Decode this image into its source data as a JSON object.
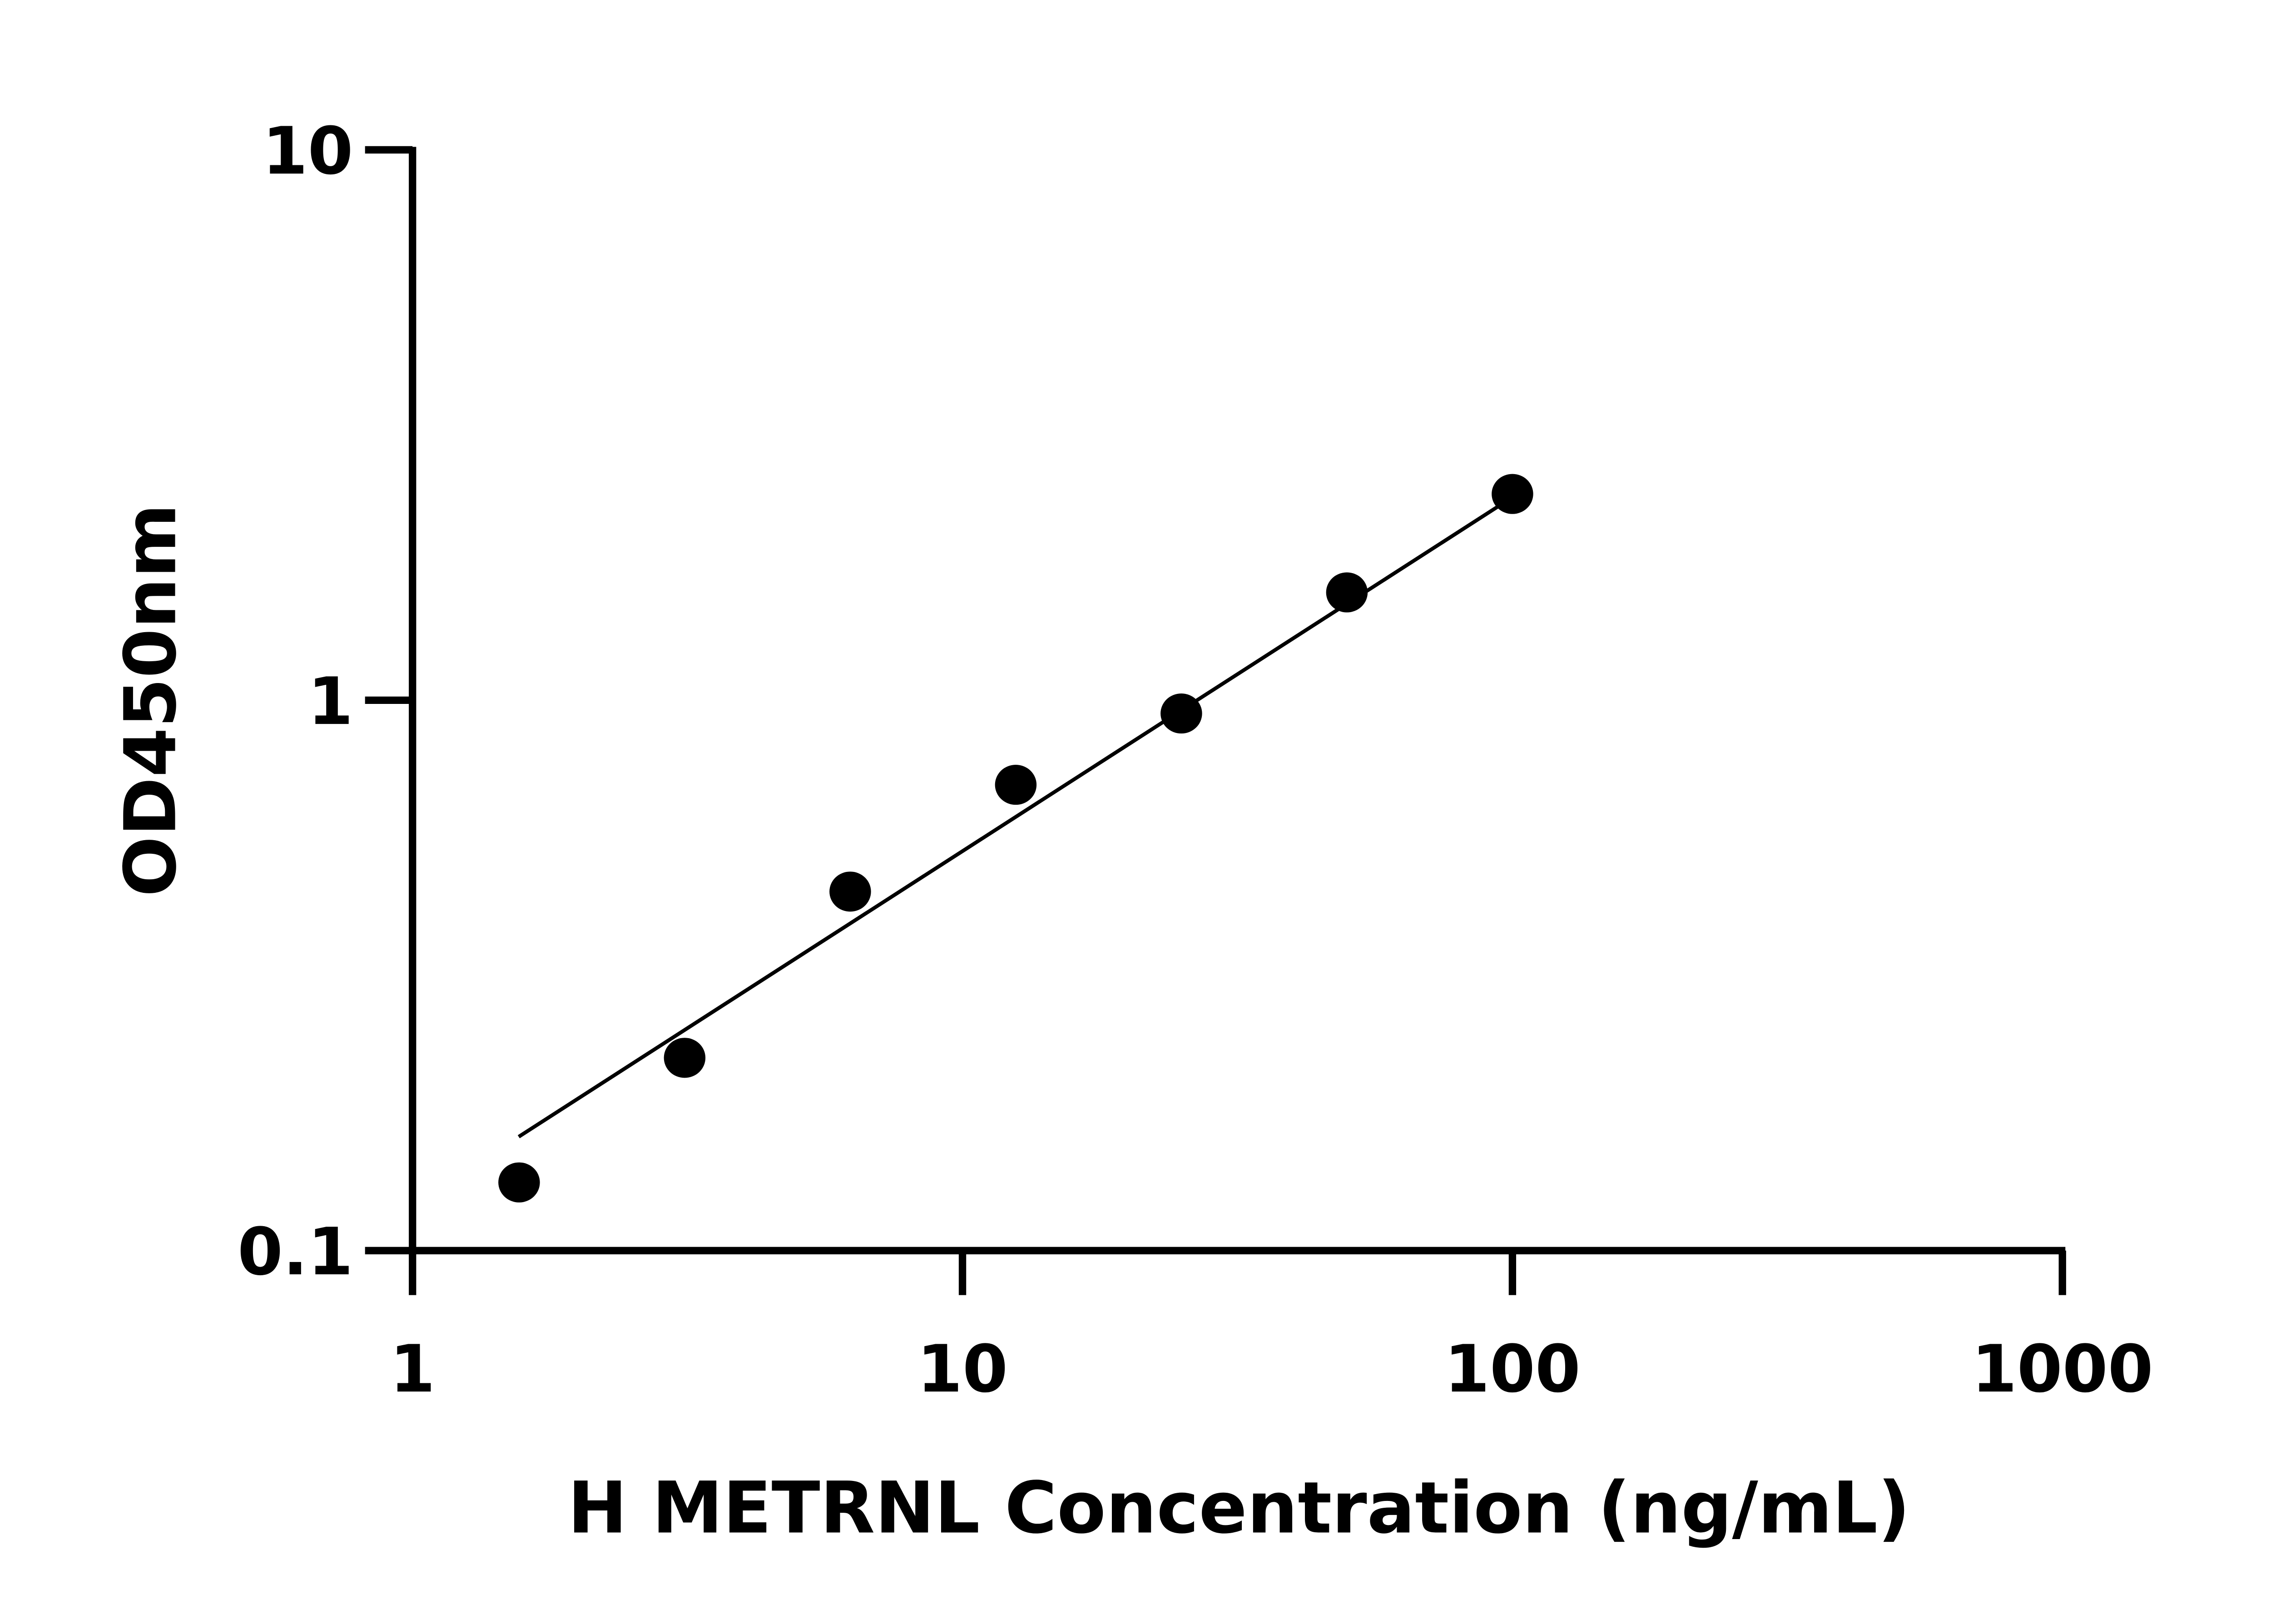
{
  "chart_data": {
    "type": "scatter",
    "title": "",
    "xlabel": "H METRNL Concentration (ng/mL)",
    "ylabel": "OD450nm",
    "x_scale": "log",
    "y_scale": "log",
    "xlim": [
      1,
      1000
    ],
    "ylim": [
      0.1,
      10
    ],
    "x_ticks": [
      "1",
      "10",
      "100",
      "1000"
    ],
    "y_ticks": [
      "0.1",
      "1",
      "10"
    ],
    "grid": false,
    "legend": "none",
    "series": [
      {
        "type": "scatter",
        "x": [
          1.5625,
          3.125,
          6.25,
          12.5,
          25,
          50,
          100
        ],
        "y": [
          0.133,
          0.224,
          0.449,
          0.702,
          0.946,
          1.57,
          2.37
        ]
      }
    ],
    "fit_line": {
      "x": [
        1.56,
        97.5
      ],
      "y": [
        0.161,
        2.3
      ]
    },
    "colors": {
      "marker": "#000000",
      "line": "#000000",
      "axis": "#000000"
    }
  }
}
